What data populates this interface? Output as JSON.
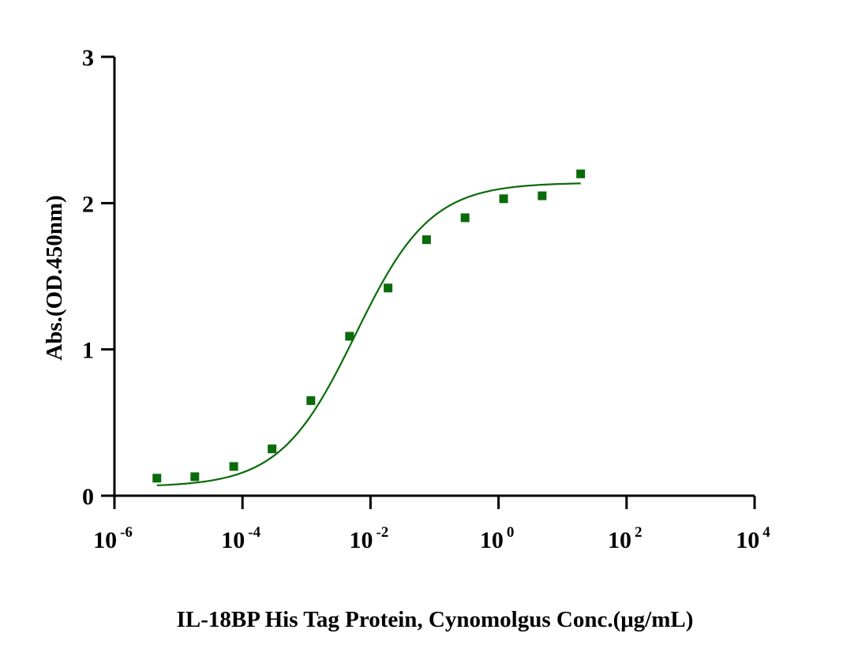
{
  "chart_data": {
    "type": "scatter",
    "xlabel": "IL-18BP His Tag Protein, Cynomolgus Conc.(μg/mL)",
    "ylabel": "Abs.(OD.450nm)",
    "x_scale": "log",
    "xlim": [
      1e-06,
      10000
    ],
    "ylim": [
      0,
      3
    ],
    "x_ticks": [
      {
        "base": "10",
        "exp": "-6"
      },
      {
        "base": "10",
        "exp": "-4"
      },
      {
        "base": "10",
        "exp": "-2"
      },
      {
        "base": "10",
        "exp": "0"
      },
      {
        "base": "10",
        "exp": "2"
      },
      {
        "base": "10",
        "exp": "4"
      }
    ],
    "y_ticks": [
      "0",
      "1",
      "2",
      "3"
    ],
    "grid": false,
    "color": "#0a6b0a",
    "series": [
      {
        "marker": "square",
        "x": [
          4.6e-06,
          1.8e-05,
          7.3e-05,
          0.00029,
          0.00117,
          0.0047,
          0.0188,
          0.075,
          0.3,
          1.2,
          4.8,
          19.2
        ],
        "y": [
          0.12,
          0.13,
          0.2,
          0.32,
          0.65,
          1.09,
          1.42,
          1.75,
          1.9,
          2.03,
          2.05,
          2.2
        ]
      }
    ],
    "fit_curve": {
      "type": "4PL",
      "bottom": 0.06,
      "top": 2.14,
      "ec50": 0.0058,
      "hill": 0.74,
      "x_range": [
        4.6e-06,
        19.2
      ]
    }
  }
}
